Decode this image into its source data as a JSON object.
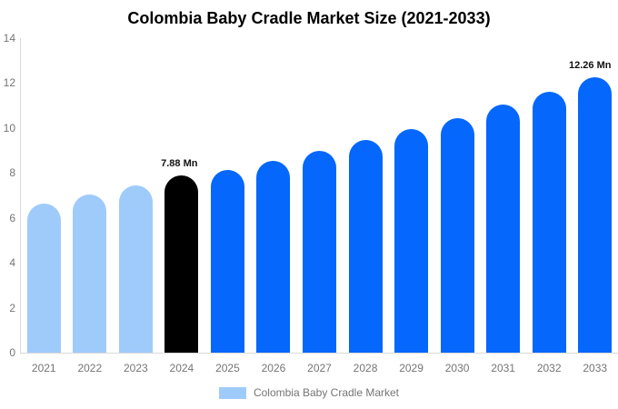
{
  "title": "Colombia Baby Cradle Market Size (2021-2033)",
  "legend": {
    "label": "Colombia Baby Cradle Market",
    "position": "bottom"
  },
  "colors": {
    "historical": "#9FCBFB",
    "base_year": "#000000",
    "forecast": "#0567FB",
    "axis_line": "#D9D9D9",
    "tick_text": "#757575",
    "title_text": "#000000",
    "annotation_text": "#111111"
  },
  "chart_data": {
    "type": "bar",
    "title": "Colombia Baby Cradle Market Size (2021-2033)",
    "unit": "Mn",
    "categories": [
      "2021",
      "2022",
      "2023",
      "2024",
      "2025",
      "2026",
      "2027",
      "2028",
      "2029",
      "2030",
      "2031",
      "2032",
      "2033"
    ],
    "series": [
      {
        "name": "Colombia Baby Cradle Market",
        "values": [
          6.65,
          7.05,
          7.45,
          7.88,
          8.15,
          8.55,
          9.0,
          9.45,
          9.95,
          10.45,
          11.05,
          11.6,
          12.26
        ]
      }
    ],
    "bar_styles": [
      "historical",
      "historical",
      "historical",
      "base_year",
      "forecast",
      "forecast",
      "forecast",
      "forecast",
      "forecast",
      "forecast",
      "forecast",
      "forecast",
      "forecast"
    ],
    "annotations": [
      {
        "category": "2024",
        "text": "7.88 Mn"
      },
      {
        "category": "2033",
        "text": "12.26 Mn"
      }
    ],
    "xlabel": "",
    "ylabel": "",
    "ylim": [
      0,
      14
    ],
    "yticks": [
      0,
      2,
      4,
      6,
      8,
      10,
      12,
      14
    ],
    "grid": false,
    "legend_position": "bottom"
  }
}
